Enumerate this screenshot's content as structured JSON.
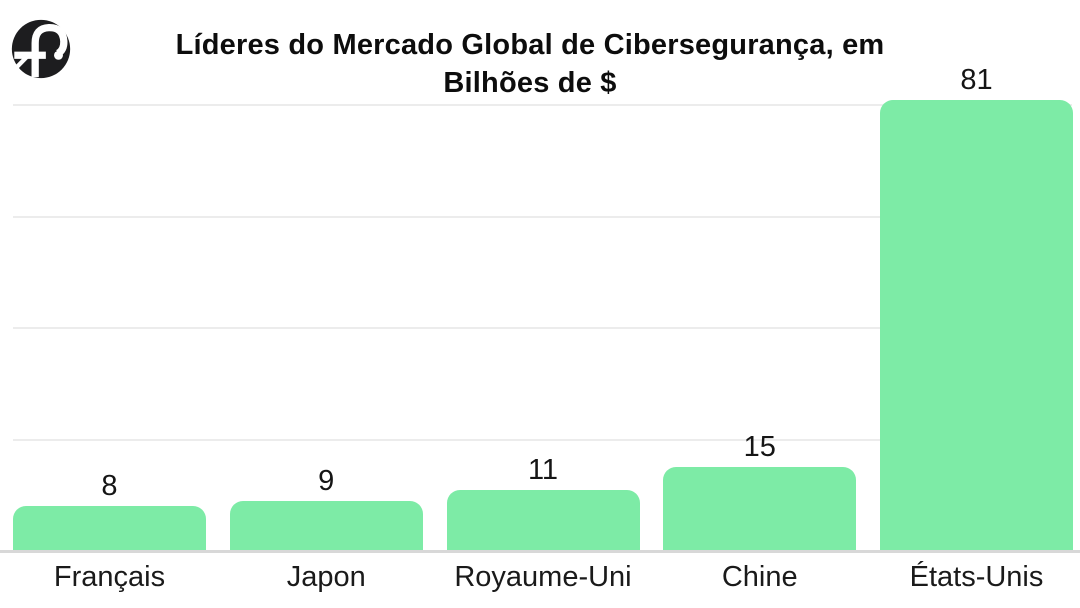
{
  "logo": {
    "name": "f-circle-logo",
    "color": "#1d1d1f",
    "detail_color": "#ffffff"
  },
  "chart_data": {
    "type": "bar",
    "title": "Líderes do Mercado Global de Cibersegurança, em Bilhões de $",
    "title_lines": [
      "Líderes do Mercado Global de Cibersegurança, em",
      "Bilhões de $"
    ],
    "categories": [
      "Français",
      "Japon",
      "Royaume-Uni",
      "Chine",
      "États-Unis"
    ],
    "values": [
      8,
      9,
      11,
      15,
      81
    ],
    "xlabel": "",
    "ylabel": "",
    "ylim": [
      0,
      81
    ],
    "gridline_values": [
      20,
      40,
      60,
      80
    ],
    "grid_visible": true,
    "legend": false,
    "data_labels": true,
    "bar_color": "#7deba6",
    "grid_color": "#ececec",
    "axis_color": "#d8d8d8",
    "value_label_color": "#151515",
    "category_label_color": "#1a1a1a",
    "title_color": "#0d0d0d",
    "background_color": "#ffffff"
  }
}
